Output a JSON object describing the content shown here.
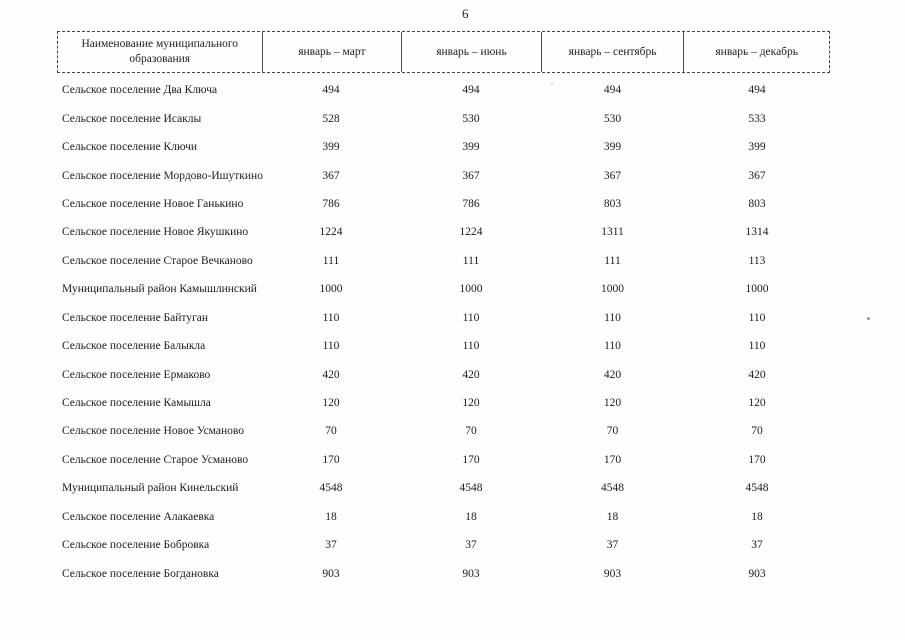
{
  "page": {
    "number": "6"
  },
  "table": {
    "header": {
      "name_col": "Наименование муниципального образования",
      "periods": [
        "январь – март",
        "январь – июнь",
        "январь – сентябрь",
        "январь – декабрь"
      ]
    },
    "rows": [
      {
        "name": "Сельское поселение Два Ключа",
        "values": [
          "494",
          "494",
          "494",
          "494"
        ]
      },
      {
        "name": "Сельское поселение Исаклы",
        "values": [
          "528",
          "530",
          "530",
          "533"
        ]
      },
      {
        "name": "Сельское поселение Ключи",
        "values": [
          "399",
          "399",
          "399",
          "399"
        ]
      },
      {
        "name": "Сельское поселение Мордово-Ишуткино",
        "values": [
          "367",
          "367",
          "367",
          "367"
        ]
      },
      {
        "name": "Сельское поселение Новое Ганькино",
        "values": [
          "786",
          "786",
          "803",
          "803"
        ]
      },
      {
        "name": "Сельское поселение Новое Якушкино",
        "values": [
          "1224",
          "1224",
          "1311",
          "1314"
        ]
      },
      {
        "name": "Сельское поселение Старое Вечканово",
        "values": [
          "111",
          "111",
          "111",
          "113"
        ]
      },
      {
        "name": "Муниципальный район Камышлинский",
        "values": [
          "1000",
          "1000",
          "1000",
          "1000"
        ]
      },
      {
        "name": "Сельское поселение Байтуган",
        "values": [
          "110",
          "110",
          "110",
          "110"
        ]
      },
      {
        "name": "Сельское поселение Балыкла",
        "values": [
          "110",
          "110",
          "110",
          "110"
        ]
      },
      {
        "name": "Сельское поселение Ермаково",
        "values": [
          "420",
          "420",
          "420",
          "420"
        ]
      },
      {
        "name": "Сельское поселение Камышла",
        "values": [
          "120",
          "120",
          "120",
          "120"
        ]
      },
      {
        "name": "Сельское поселение Новое Усманово",
        "values": [
          "70",
          "70",
          "70",
          "70"
        ]
      },
      {
        "name": "Сельское поселение Старое Усманово",
        "values": [
          "170",
          "170",
          "170",
          "170"
        ]
      },
      {
        "name": "Муниципальный район Кинельский",
        "values": [
          "4548",
          "4548",
          "4548",
          "4548"
        ]
      },
      {
        "name": "Сельское поселение Алакаевка",
        "values": [
          "18",
          "18",
          "18",
          "18"
        ]
      },
      {
        "name": "Сельское поселение Бобровка",
        "values": [
          "37",
          "37",
          "37",
          "37"
        ]
      },
      {
        "name": "Сельское поселение Богдановка",
        "values": [
          "903",
          "903",
          "903",
          "903"
        ]
      }
    ]
  }
}
